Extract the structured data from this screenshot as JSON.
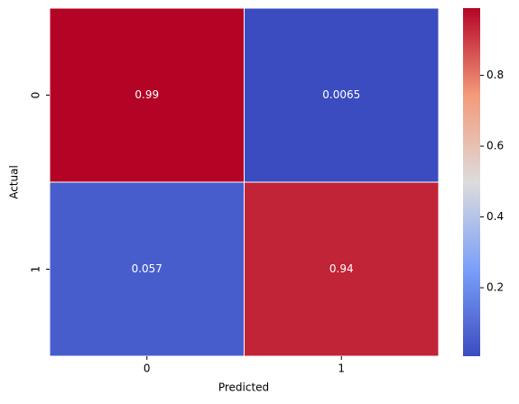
{
  "chart_data": {
    "type": "heatmap",
    "x_categories": [
      "0",
      "1"
    ],
    "y_categories": [
      "0",
      "1"
    ],
    "values": [
      [
        0.99,
        0.0065
      ],
      [
        0.057,
        0.94
      ]
    ],
    "xlabel": "Predicted",
    "ylabel": "Actual",
    "colormap": "coolwarm",
    "clim": [
      0.0065,
      0.99
    ],
    "colorbar_ticks": [
      0.2,
      0.4,
      0.6,
      0.8
    ]
  }
}
